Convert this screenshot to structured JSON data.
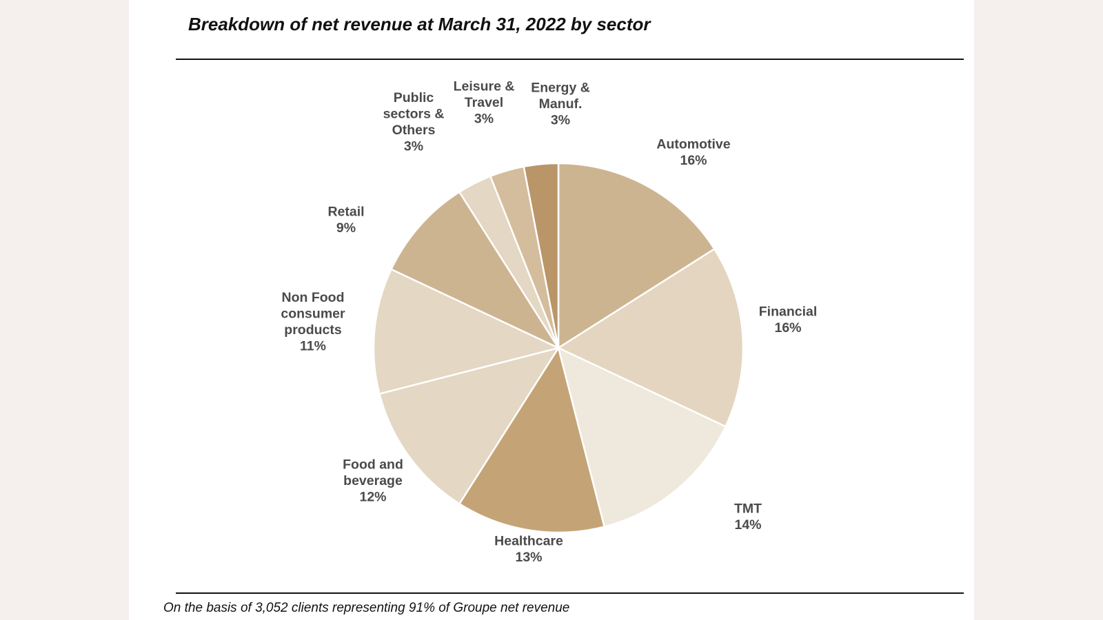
{
  "title": "Breakdown of net revenue at March 31, 2022 by sector",
  "footnote": "On the basis of 3,052 clients representing 91% of Groupe net revenue",
  "chart_data": {
    "type": "pie",
    "title": "Breakdown of net revenue at March 31, 2022 by sector",
    "unit": "%",
    "slices": [
      {
        "label": "Automotive",
        "label_lines": [
          "Automotive"
        ],
        "value": 16,
        "value_text": "16%",
        "color": "#cdb491"
      },
      {
        "label": "Financial",
        "label_lines": [
          "Financial"
        ],
        "value": 16,
        "value_text": "16%",
        "color": "#e3d5bf"
      },
      {
        "label": "TMT",
        "label_lines": [
          "TMT"
        ],
        "value": 14,
        "value_text": "14%",
        "color": "#efe8dc"
      },
      {
        "label": "Healthcare",
        "label_lines": [
          "Healthcare"
        ],
        "value": 13,
        "value_text": "13%",
        "color": "#c4a477"
      },
      {
        "label": "Food and beverage",
        "label_lines": [
          "Food and",
          "beverage"
        ],
        "value": 12,
        "value_text": "12%",
        "color": "#e4d7c3"
      },
      {
        "label": "Non Food consumer products",
        "label_lines": [
          "Non Food",
          "consumer",
          "products"
        ],
        "value": 11,
        "value_text": "11%",
        "color": "#e4d7c3"
      },
      {
        "label": "Retail",
        "label_lines": [
          "Retail"
        ],
        "value": 9,
        "value_text": "9%",
        "color": "#cdb491"
      },
      {
        "label": "Public sectors & Others",
        "label_lines": [
          "Public",
          "sectors &",
          "Others"
        ],
        "value": 3,
        "value_text": "3%",
        "color": "#e4d7c3"
      },
      {
        "label": "Leisure & Travel",
        "label_lines": [
          "Leisure &",
          "Travel"
        ],
        "value": 3,
        "value_text": "3%",
        "color": "#d3bd9c"
      },
      {
        "label": "Energy & Manuf.",
        "label_lines": [
          "Energy  &",
          "Manuf."
        ],
        "value": 3,
        "value_text": "3%",
        "color": "#b99568"
      }
    ]
  }
}
